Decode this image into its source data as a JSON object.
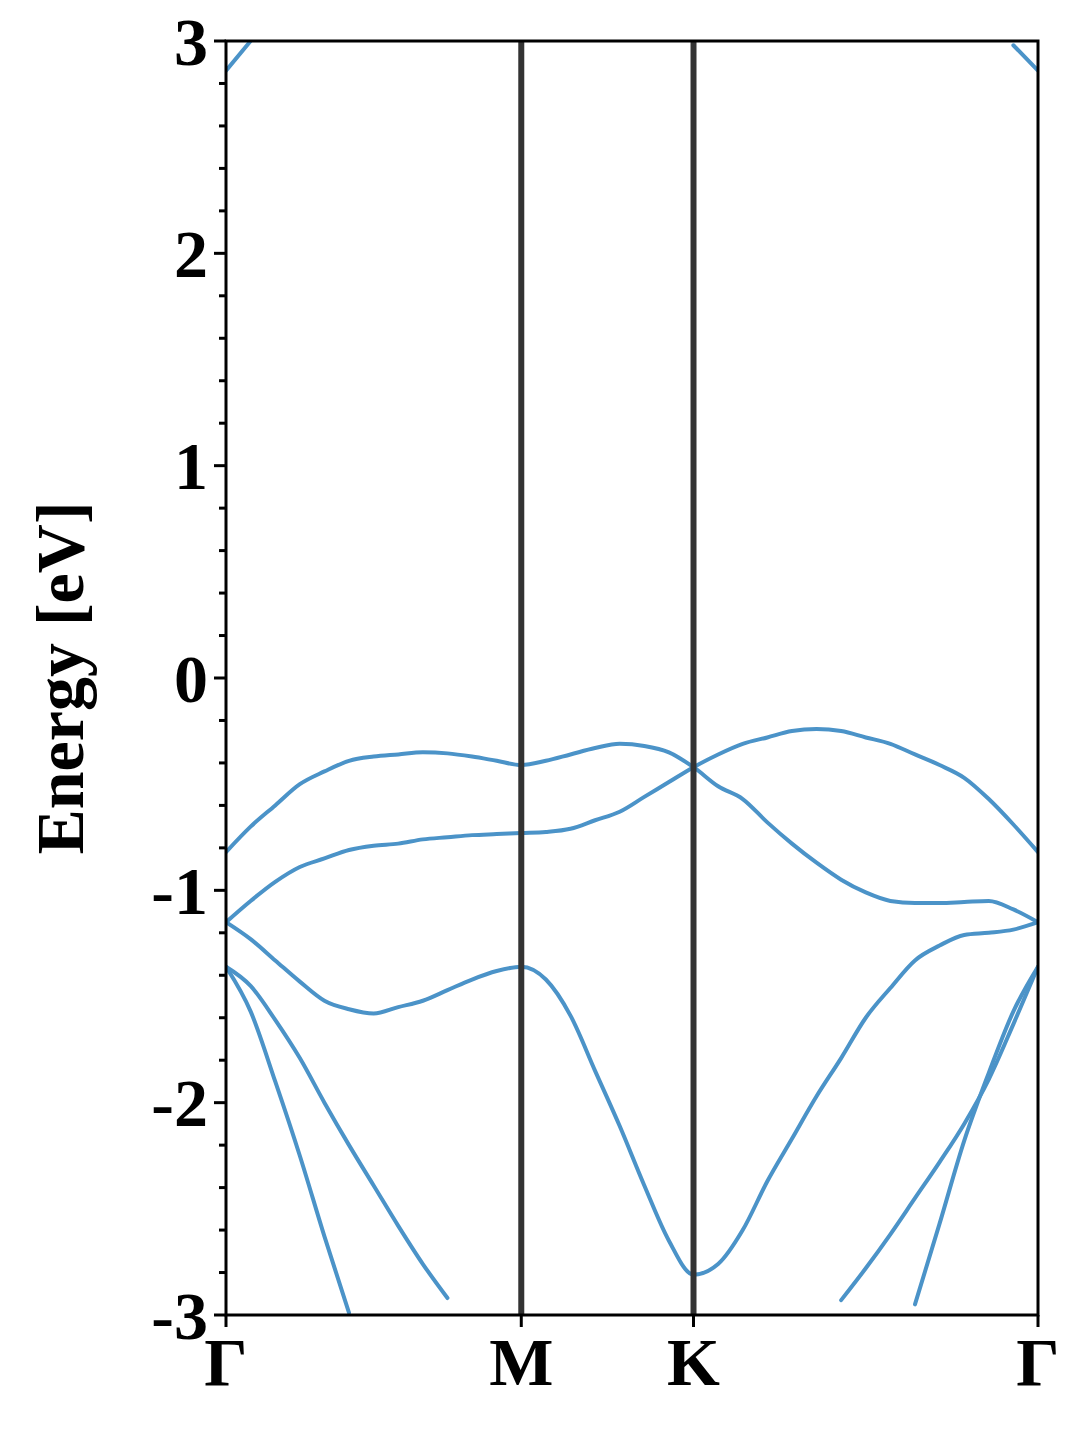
{
  "chart_data": {
    "type": "line",
    "ylabel": "Energy [eV]",
    "categories": [
      "Γ",
      null,
      null,
      null,
      null,
      null,
      null,
      null,
      null,
      null,
      null,
      null,
      "M",
      null,
      null,
      null,
      null,
      null,
      null,
      "K",
      null,
      null,
      null,
      null,
      null,
      null,
      null,
      null,
      null,
      null,
      null,
      null,
      null,
      "Γ"
    ],
    "ylim": [
      -3,
      3
    ],
    "yticks": [
      -3,
      {
        "value": -2.8,
        "label": null
      },
      {
        "value": -2.6,
        "label": null
      },
      {
        "value": -2.4,
        "label": null
      },
      {
        "value": -2.2,
        "label": null
      },
      -2,
      {
        "value": -1.8,
        "label": null
      },
      {
        "value": -1.6,
        "label": null
      },
      {
        "value": -1.4,
        "label": null
      },
      {
        "value": -1.2,
        "label": null
      },
      -1,
      {
        "value": -0.8,
        "label": null
      },
      {
        "value": -0.6,
        "label": null
      },
      {
        "value": -0.4,
        "label": null
      },
      {
        "value": -0.2,
        "label": null
      },
      0,
      {
        "value": 0.2,
        "label": null
      },
      {
        "value": 0.4,
        "label": null
      },
      {
        "value": 0.6,
        "label": null
      },
      {
        "value": 0.8,
        "label": null
      },
      1,
      {
        "value": 1.2,
        "label": null
      },
      {
        "value": 1.4,
        "label": null
      },
      {
        "value": 1.6,
        "label": null
      },
      {
        "value": 1.8,
        "label": null
      },
      2,
      {
        "value": 2.2,
        "label": null
      },
      {
        "value": 2.4,
        "label": null
      },
      {
        "value": 2.6,
        "label": null
      },
      {
        "value": 2.8,
        "label": null
      },
      3
    ],
    "ref_lines": [
      {
        "axis": "x",
        "value": "M",
        "color": "#333333"
      },
      {
        "axis": "x",
        "value": "K",
        "color": "#333333"
      }
    ],
    "series": [
      {
        "color": "#4b93c8",
        "values": [
          -0.82,
          -0.7,
          -0.6,
          -0.5,
          -0.44,
          -0.39,
          -0.37,
          -0.36,
          -0.35,
          -0.355,
          -0.37,
          -0.39,
          -0.41,
          -0.39,
          -0.36,
          -0.33,
          -0.31,
          -0.32,
          -0.35,
          -0.42,
          -0.51,
          -0.57,
          -0.68,
          -0.78,
          -0.87,
          -0.95,
          -1.01,
          -1.05,
          -1.06,
          -1.06,
          -1.055,
          -1.05,
          -1.09,
          -1.15
        ]
      },
      {
        "color": "#4b93c8",
        "values": [
          -1.15,
          -1.05,
          -0.96,
          -0.89,
          -0.85,
          -0.81,
          -0.79,
          -0.78,
          -0.76,
          -0.75,
          -0.74,
          -0.735,
          -0.73,
          -0.725,
          -0.71,
          -0.67,
          -0.63,
          -0.56,
          -0.49,
          -0.42,
          -0.36,
          -0.31,
          -0.28,
          -0.25,
          -0.24,
          -0.25,
          -0.28,
          -0.31,
          -0.36,
          -0.41,
          -0.47,
          -0.57,
          -0.69,
          -0.82
        ]
      },
      {
        "color": "#4b93c8",
        "values": [
          -1.15,
          -1.23,
          -1.33,
          -1.43,
          -1.52,
          -1.56,
          -1.58,
          -1.55,
          -1.52,
          -1.47,
          -1.42,
          -1.38,
          -1.36,
          -1.42,
          -1.59,
          -1.85,
          -2.11,
          -2.39,
          -2.65,
          -2.81,
          -2.76,
          -2.6,
          -2.37,
          -2.17,
          -1.97,
          -1.79,
          -1.6,
          -1.46,
          -1.33,
          -1.26,
          -1.21,
          -1.2,
          -1.185,
          -1.15
        ]
      },
      {
        "color": "#4b93c8",
        "values": [
          -1.36,
          -1.45,
          -1.61,
          -1.79,
          -2.0,
          -2.2,
          -2.39,
          -2.58,
          -2.76,
          -2.92,
          null,
          null,
          null,
          null,
          null,
          null,
          null,
          null,
          null,
          null,
          null,
          null,
          null,
          null,
          null,
          null,
          null,
          null,
          null,
          null,
          null,
          null,
          null,
          null
        ]
      },
      {
        "color": "#4b93c8",
        "values": [
          -1.36,
          -1.57,
          -1.9,
          -2.25,
          -2.63,
          -2.99,
          null,
          null,
          null,
          null,
          null,
          null,
          null,
          null,
          null,
          null,
          null,
          null,
          null,
          null,
          null,
          null,
          null,
          null,
          null,
          null,
          null,
          null,
          null,
          null,
          null,
          null,
          null,
          null
        ]
      },
      {
        "color": "#4b93c8",
        "values": [
          null,
          null,
          null,
          null,
          null,
          null,
          null,
          null,
          null,
          null,
          null,
          null,
          null,
          null,
          null,
          null,
          null,
          null,
          null,
          null,
          null,
          null,
          null,
          null,
          null,
          -2.93,
          -2.78,
          -2.62,
          -2.45,
          -2.28,
          -2.1,
          -1.89,
          -1.63,
          -1.36
        ]
      },
      {
        "color": "#4b93c8",
        "values": [
          null,
          null,
          null,
          null,
          null,
          null,
          null,
          null,
          null,
          null,
          null,
          null,
          null,
          null,
          null,
          null,
          null,
          null,
          null,
          null,
          null,
          null,
          null,
          null,
          null,
          null,
          null,
          null,
          -2.95,
          -2.57,
          -2.18,
          -1.86,
          -1.57,
          -1.36
        ]
      },
      {
        "color": "#4b93c8",
        "values": [
          2.86,
          3,
          null,
          null,
          null,
          null,
          null,
          null,
          null,
          null,
          null,
          null,
          null,
          null,
          null,
          null,
          null,
          null,
          null,
          null,
          null,
          null,
          null,
          null,
          null,
          null,
          null,
          null,
          null,
          null,
          null,
          null,
          null,
          null
        ]
      },
      {
        "color": "#4b93c8",
        "values": [
          null,
          null,
          null,
          null,
          null,
          null,
          null,
          null,
          null,
          null,
          null,
          null,
          null,
          null,
          null,
          null,
          null,
          null,
          null,
          null,
          null,
          null,
          null,
          null,
          null,
          null,
          null,
          null,
          null,
          null,
          null,
          null,
          2.98,
          2.86
        ]
      }
    ]
  }
}
